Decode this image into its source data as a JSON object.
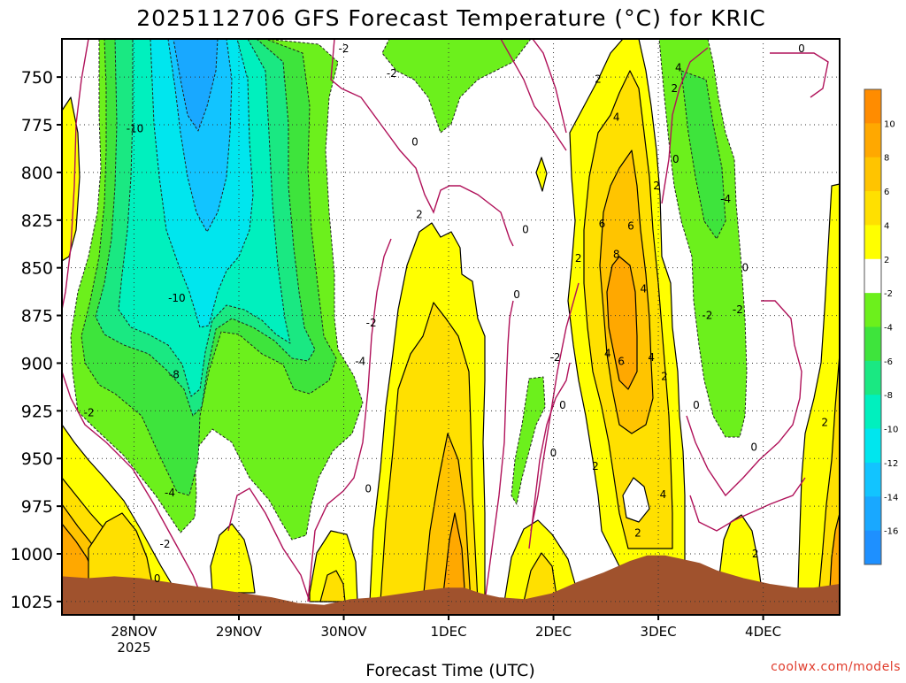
{
  "chart_data": {
    "type": "heatmap",
    "title": "2025112706 GFS Forecast Temperature (°C) for KRIC",
    "xlabel": "Forecast Time (UTC)",
    "ylabel": "",
    "credit": "coolwx.com/models",
    "x_ticks": [
      {
        "t": 16.5,
        "label": "28NOV",
        "sub": "2025"
      },
      {
        "t": 40.5,
        "label": "29NOV",
        "sub": ""
      },
      {
        "t": 64.5,
        "label": "30NOV",
        "sub": ""
      },
      {
        "t": 88.5,
        "label": "1DEC",
        "sub": ""
      },
      {
        "t": 112.5,
        "label": "2DEC",
        "sub": ""
      },
      {
        "t": 136.5,
        "label": "3DEC",
        "sub": ""
      },
      {
        "t": 160.5,
        "label": "4DEC",
        "sub": ""
      }
    ],
    "x_range": [
      0,
      178
    ],
    "y_range": [
      730,
      1032
    ],
    "y_ticks": [
      750,
      775,
      800,
      825,
      850,
      875,
      900,
      925,
      950,
      975,
      1000,
      1025
    ],
    "grid": true,
    "colorbar": {
      "levels": [
        -18,
        -16,
        -14,
        -12,
        -10,
        -8,
        -6,
        -4,
        -2,
        2,
        4,
        6,
        8,
        10,
        12
      ],
      "colors": [
        "#1e90ff",
        "#19a8ff",
        "#12c4ff",
        "#00e6ee",
        "#00f0be",
        "#1ae882",
        "#3ee43c",
        "#6cf01c",
        "#ffffff",
        "#ffff00",
        "#ffe000",
        "#ffc400",
        "#ffa800",
        "#ff8c00"
      ],
      "tick_labels": [
        "-16",
        "-14",
        "-12",
        "-10",
        "-8",
        "-6",
        "-4",
        "-2",
        "2",
        "4",
        "6",
        "8",
        "10"
      ]
    },
    "surface_pressure_hpa": [
      [
        0,
        1012
      ],
      [
        6,
        1013
      ],
      [
        12,
        1012
      ],
      [
        18,
        1013
      ],
      [
        24,
        1015
      ],
      [
        30,
        1017
      ],
      [
        36,
        1019
      ],
      [
        42,
        1021
      ],
      [
        48,
        1023
      ],
      [
        54,
        1026
      ],
      [
        60,
        1027
      ],
      [
        66,
        1024
      ],
      [
        72,
        1023
      ],
      [
        78,
        1021
      ],
      [
        84,
        1019
      ],
      [
        88,
        1018
      ],
      [
        92,
        1018
      ],
      [
        96,
        1021
      ],
      [
        100,
        1023
      ],
      [
        106,
        1024
      ],
      [
        112,
        1021
      ],
      [
        118,
        1015
      ],
      [
        124,
        1010
      ],
      [
        130,
        1004
      ],
      [
        134,
        1001
      ],
      [
        138,
        1001
      ],
      [
        142,
        1003
      ],
      [
        146,
        1005
      ],
      [
        150,
        1009
      ],
      [
        156,
        1013
      ],
      [
        162,
        1016
      ],
      [
        168,
        1018
      ],
      [
        172,
        1018
      ],
      [
        178,
        1016
      ]
    ],
    "contour_labels": [
      {
        "t": 75.5,
        "p": 748,
        "v": -2
      },
      {
        "t": 64.5,
        "p": 735,
        "v": -2
      },
      {
        "t": 16.7,
        "p": 777,
        "v": -10
      },
      {
        "t": 26.3,
        "p": 866,
        "v": -10
      },
      {
        "t": 25.7,
        "p": 906,
        "v": -8
      },
      {
        "t": 24.7,
        "p": 968,
        "v": -4
      },
      {
        "t": 23.6,
        "p": 995,
        "v": -2
      },
      {
        "t": 21.8,
        "p": 1013,
        "v": 0
      },
      {
        "t": 6.2,
        "p": 926,
        "v": -2
      },
      {
        "t": 70.8,
        "p": 879,
        "v": -2
      },
      {
        "t": 68.3,
        "p": 899,
        "v": -4
      },
      {
        "t": 70.1,
        "p": 966,
        "v": 0
      },
      {
        "t": 80.8,
        "p": 784,
        "v": 0
      },
      {
        "t": 81.8,
        "p": 822,
        "v": 2
      },
      {
        "t": 104.1,
        "p": 864,
        "v": 0
      },
      {
        "t": 106.1,
        "p": 830,
        "v": 0
      },
      {
        "t": 114.6,
        "p": 922,
        "v": 0
      },
      {
        "t": 112.5,
        "p": 947,
        "v": 0
      },
      {
        "t": 112.9,
        "p": 897,
        "v": -2
      },
      {
        "t": 118.2,
        "p": 845,
        "v": 2
      },
      {
        "t": 122.7,
        "p": 751,
        "v": 2
      },
      {
        "t": 126.9,
        "p": 771,
        "v": 4
      },
      {
        "t": 123.6,
        "p": 827,
        "v": 6
      },
      {
        "t": 130.2,
        "p": 828,
        "v": 6
      },
      {
        "t": 126.9,
        "p": 843,
        "v": 8
      },
      {
        "t": 133.1,
        "p": 861,
        "v": 4
      },
      {
        "t": 124.9,
        "p": 895,
        "v": 4
      },
      {
        "t": 128.0,
        "p": 899,
        "v": 6
      },
      {
        "t": 134.9,
        "p": 897,
        "v": 4
      },
      {
        "t": 122.1,
        "p": 954,
        "v": 2
      },
      {
        "t": 136.1,
        "p": 807,
        "v": 2
      },
      {
        "t": 140.5,
        "p": 793,
        "v": 0
      },
      {
        "t": 137.9,
        "p": 907,
        "v": 2
      },
      {
        "t": 131.8,
        "p": 989,
        "v": 2
      },
      {
        "t": 137.6,
        "p": 969,
        "v": 4
      },
      {
        "t": 141.1,
        "p": 745,
        "v": 4
      },
      {
        "t": 140.2,
        "p": 756,
        "v": 2
      },
      {
        "t": 145.2,
        "p": 922,
        "v": 0
      },
      {
        "t": 147.7,
        "p": 875,
        "v": -2
      },
      {
        "t": 154.7,
        "p": 872,
        "v": -2
      },
      {
        "t": 151.9,
        "p": 814,
        "v": -4
      },
      {
        "t": 156.4,
        "p": 850,
        "v": 0
      },
      {
        "t": 158.4,
        "p": 944,
        "v": 0
      },
      {
        "t": 158.7,
        "p": 1000,
        "v": 2
      },
      {
        "t": 169.3,
        "p": 735,
        "v": 0
      },
      {
        "t": 174.6,
        "p": 931,
        "v": 2
      }
    ]
  }
}
